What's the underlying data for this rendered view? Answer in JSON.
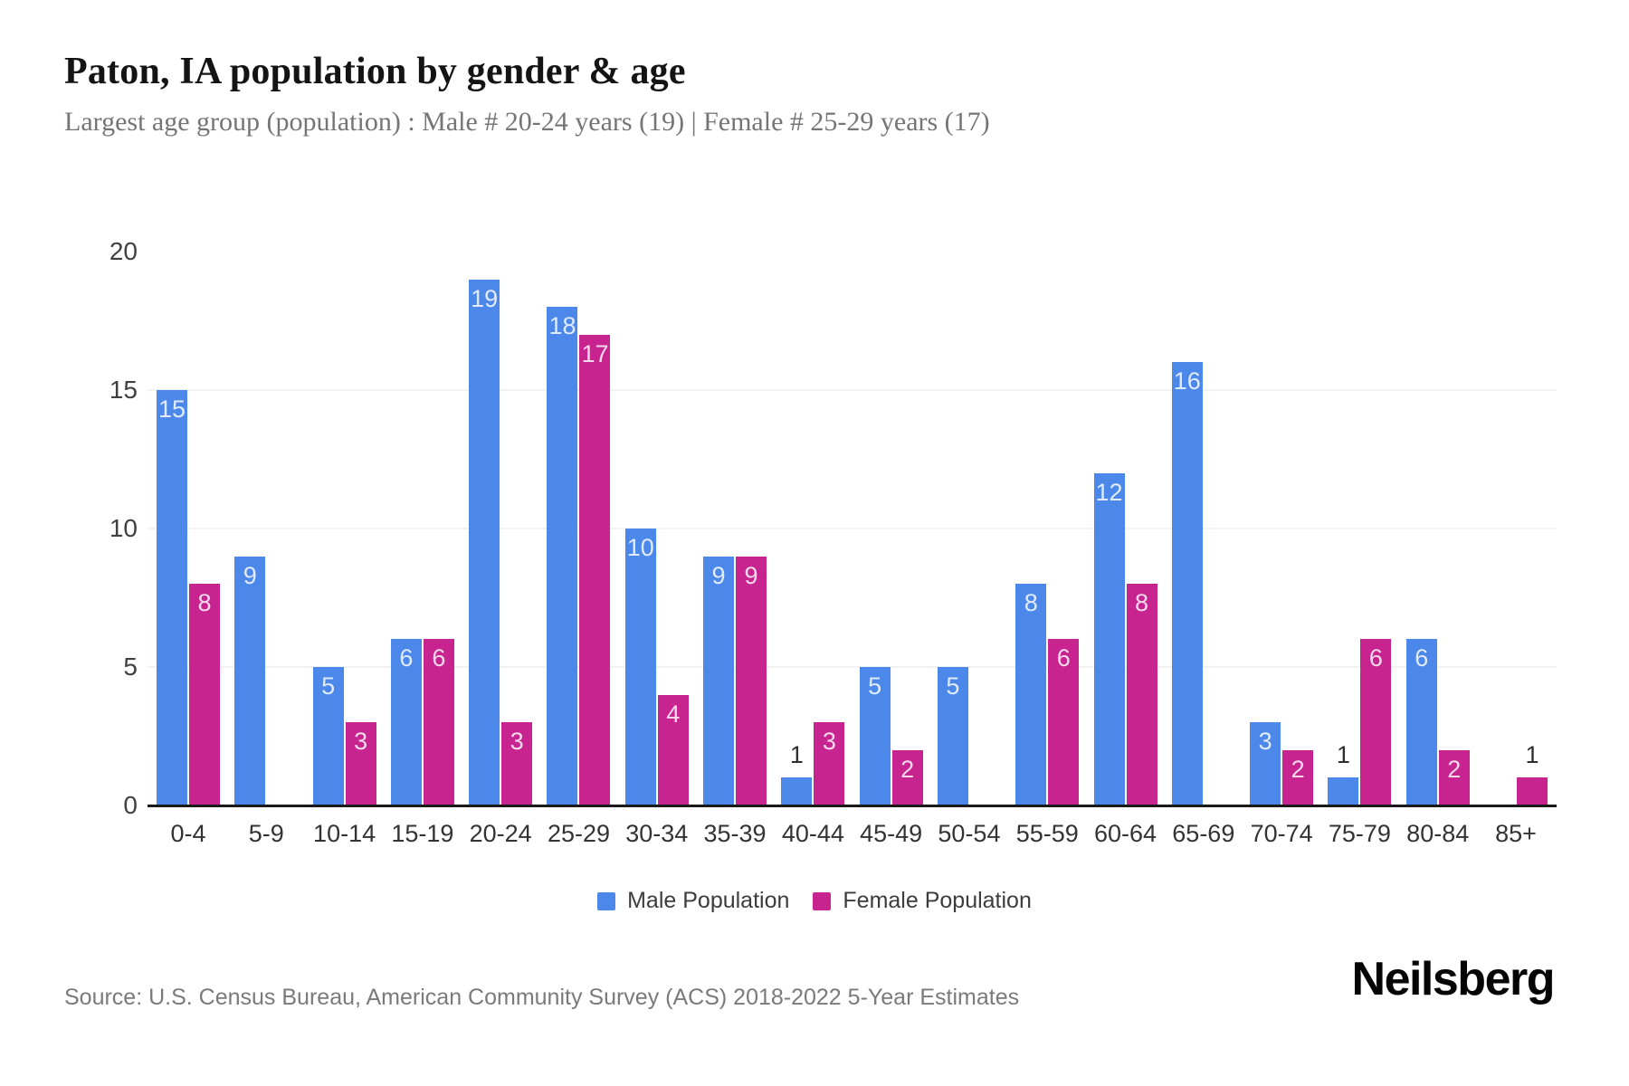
{
  "header": {
    "title": "Paton, IA population by gender & age",
    "subtitle": "Largest age group (population) : Male # 20-24 years (19) | Female # 25-29 years (17)"
  },
  "chart_data": {
    "type": "bar",
    "title": "Paton, IA population by gender & age",
    "categories": [
      "0-4",
      "5-9",
      "10-14",
      "15-19",
      "20-24",
      "25-29",
      "30-34",
      "35-39",
      "40-44",
      "45-49",
      "50-54",
      "55-59",
      "60-64",
      "65-69",
      "70-74",
      "75-79",
      "80-84",
      "85+"
    ],
    "series": [
      {
        "name": "Male Population",
        "color": "#4c87ea",
        "values": [
          15,
          9,
          5,
          6,
          19,
          18,
          10,
          9,
          1,
          5,
          5,
          8,
          12,
          16,
          3,
          1,
          6,
          0
        ]
      },
      {
        "name": "Female Population",
        "color": "#c72490",
        "values": [
          8,
          0,
          3,
          6,
          3,
          17,
          4,
          9,
          3,
          2,
          0,
          6,
          8,
          0,
          2,
          6,
          2,
          1
        ]
      }
    ],
    "xlabel": "",
    "ylabel": "",
    "ylim": [
      0,
      20
    ],
    "yticks": [
      0,
      5,
      10,
      15,
      20
    ],
    "gridline_values": [
      5,
      10,
      15
    ],
    "grid": true,
    "legend_position": "bottom",
    "value_labels": "inside-top; values of 1 shown above bar in dark text; zero values hidden"
  },
  "footer": {
    "source": "Source: U.S. Census Bureau, American Community Survey (ACS) 2018-2022 5-Year Estimates",
    "brand": "Neilsberg"
  }
}
